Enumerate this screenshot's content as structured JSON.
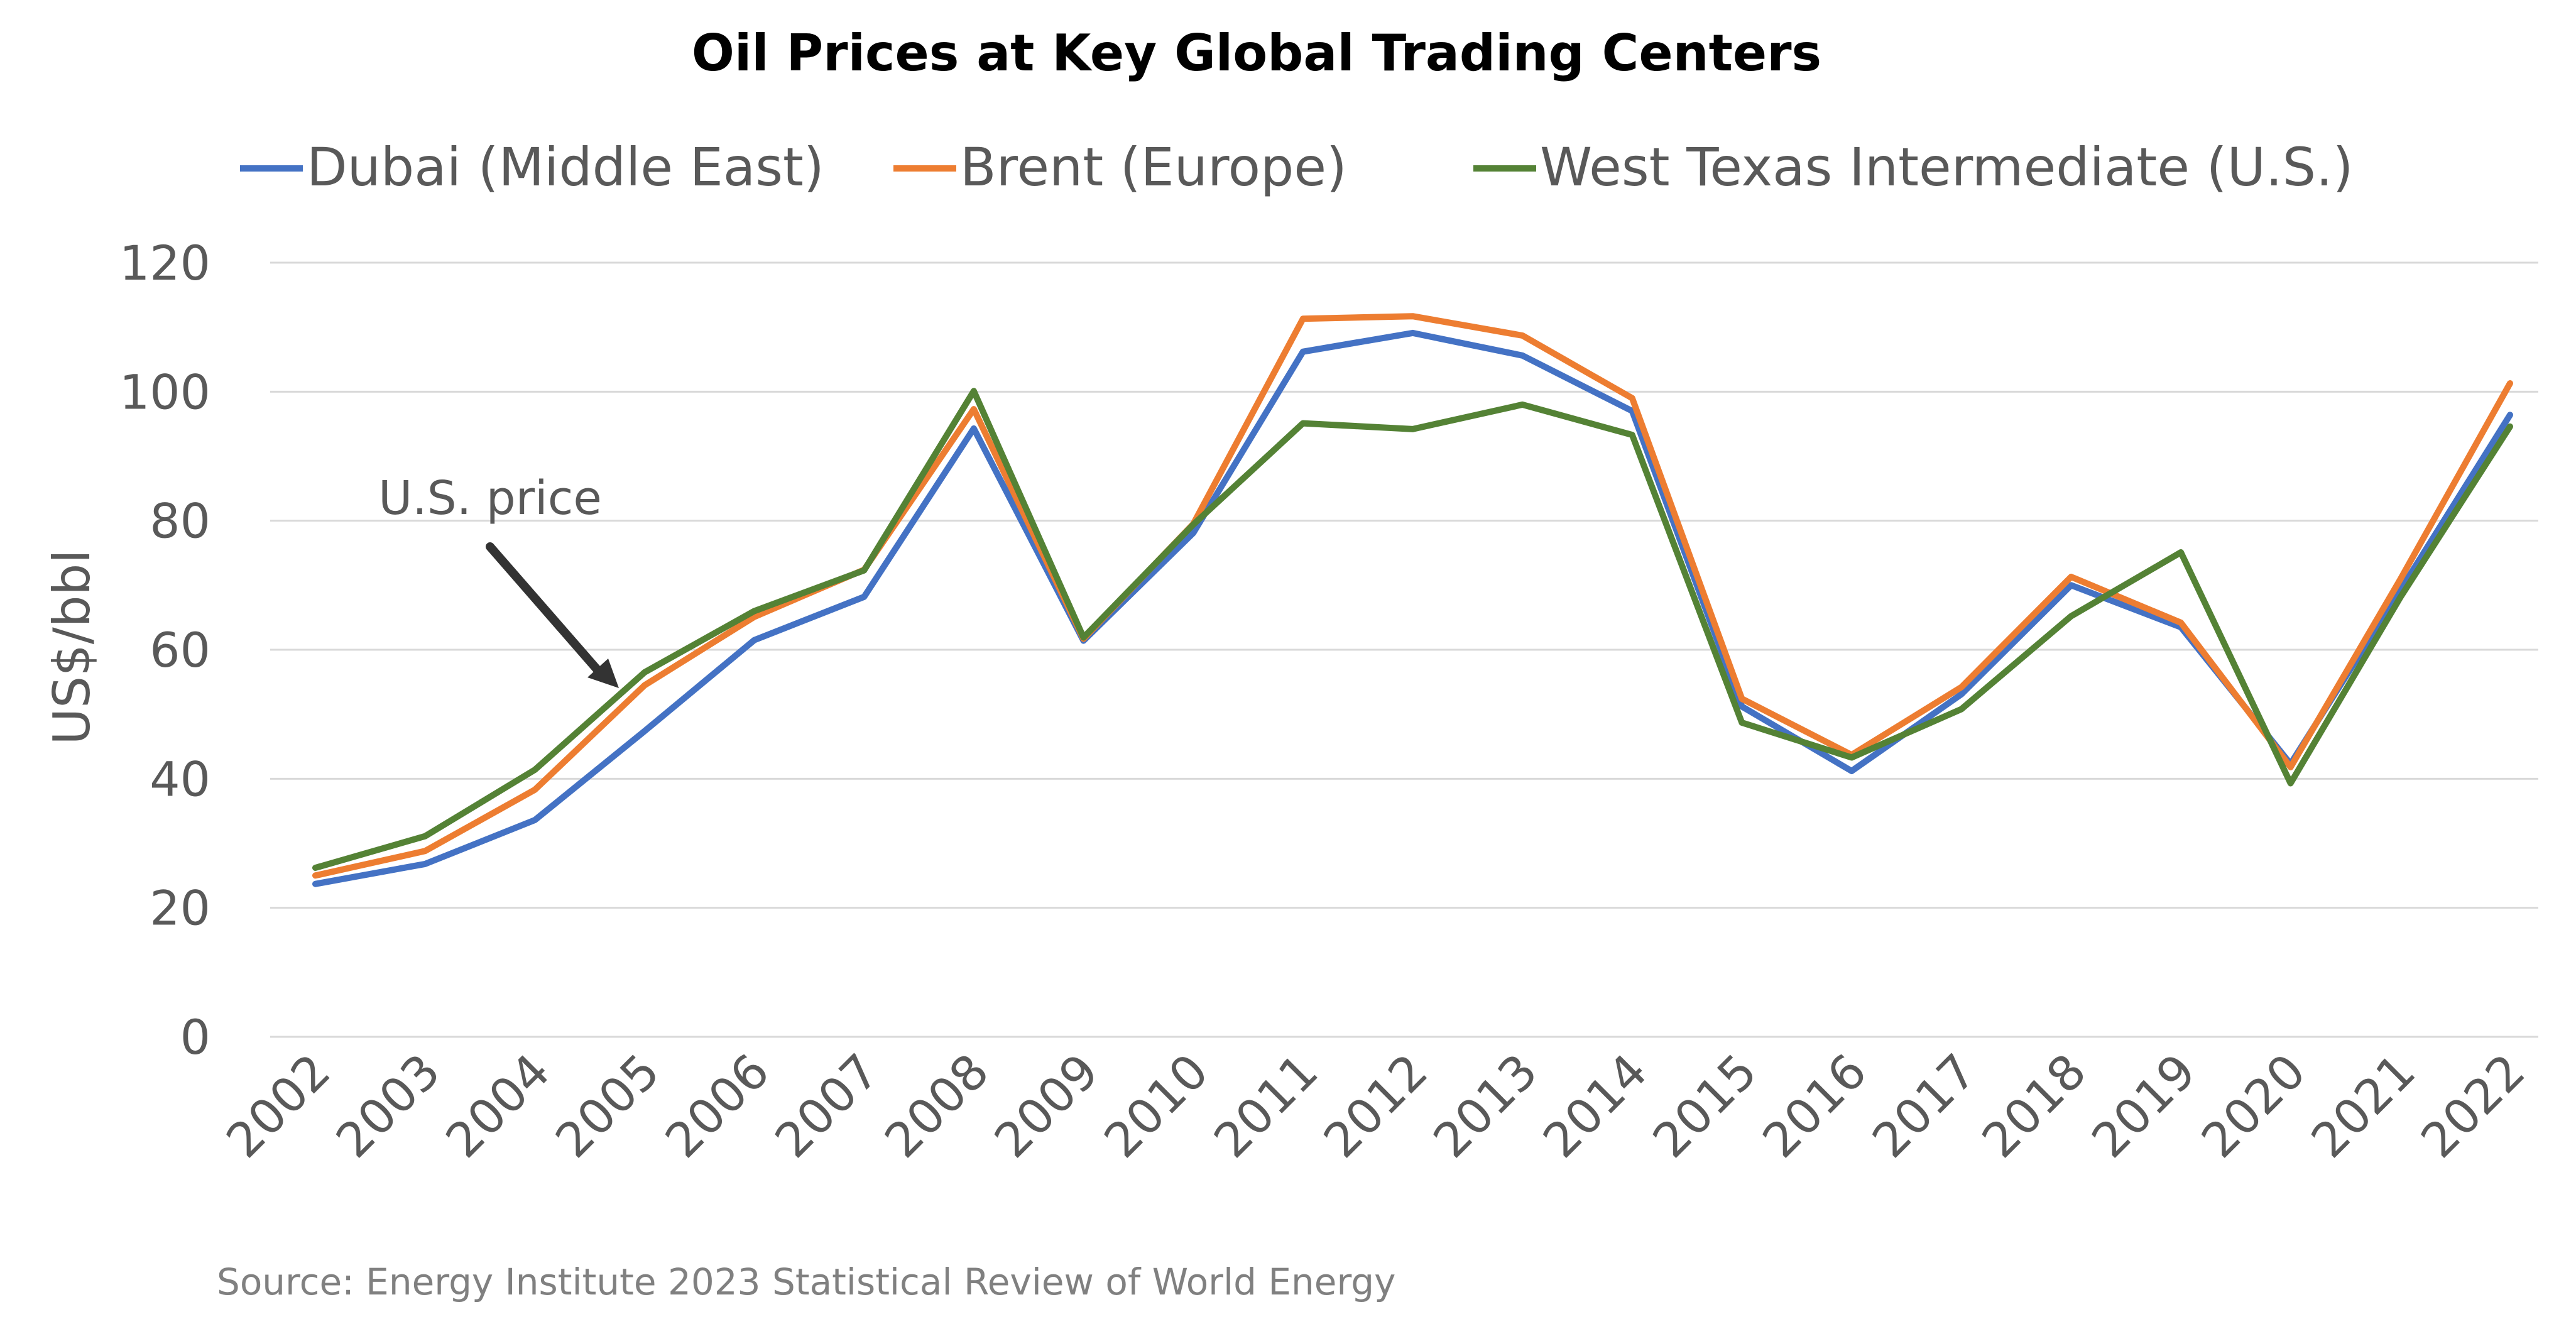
{
  "chart_data": {
    "type": "line",
    "title": "Oil Prices at Key Global Trading Centers",
    "ylabel": "US$/bbl",
    "xlabel": "",
    "ylim": [
      0,
      120
    ],
    "yticks": [
      0,
      20,
      40,
      60,
      80,
      100,
      120
    ],
    "grid": true,
    "legend_position": "top",
    "categories": [
      "2002",
      "2003",
      "2004",
      "2005",
      "2006",
      "2007",
      "2008",
      "2009",
      "2010",
      "2011",
      "2012",
      "2013",
      "2014",
      "2015",
      "2016",
      "2017",
      "2018",
      "2019",
      "2020",
      "2021",
      "2022"
    ],
    "series": [
      {
        "name": "Dubai (Middle East)",
        "color": "#4472C4",
        "values": [
          23.7,
          26.8,
          33.6,
          47.4,
          61.5,
          68.2,
          94.3,
          61.4,
          78.1,
          106.2,
          109.1,
          105.6,
          97.0,
          51.2,
          41.2,
          53.1,
          70.0,
          63.5,
          42.3,
          69.2,
          96.4
        ]
      },
      {
        "name": "Brent (Europe)",
        "color": "#ED7D31",
        "values": [
          25.0,
          28.8,
          38.3,
          54.5,
          65.1,
          72.4,
          97.3,
          61.7,
          79.5,
          111.3,
          111.7,
          108.7,
          99.0,
          52.4,
          43.7,
          54.2,
          71.3,
          64.2,
          41.8,
          70.9,
          101.3
        ]
      },
      {
        "name": "West Texas Intermediate (U.S.)",
        "color": "#548235",
        "values": [
          26.2,
          31.1,
          41.4,
          56.5,
          66.0,
          72.3,
          100.1,
          61.9,
          79.4,
          95.1,
          94.2,
          98.0,
          93.3,
          48.7,
          43.3,
          50.8,
          65.2,
          75.1,
          39.3,
          68.1,
          94.6
        ]
      }
    ],
    "annotation": {
      "text": "U.S. price",
      "points_to_category": "2005",
      "series": "West Texas Intermediate (U.S.)"
    }
  },
  "source_note": "Source: Energy Institute 2023 Statistical Review of World Energy"
}
